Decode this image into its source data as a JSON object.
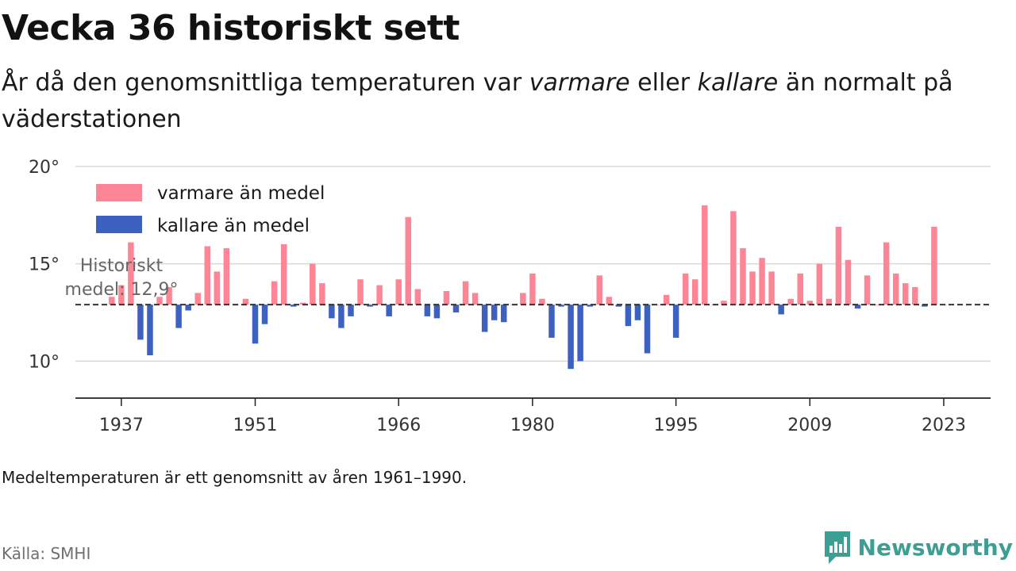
{
  "title": "Vecka 36 historiskt sett",
  "subtitle": {
    "part1": "År då den genomsnittliga temperaturen var ",
    "warm_word": "varmare",
    "part2": " eller ",
    "cold_word": "kallare",
    "part3": " än normalt på väderstationen"
  },
  "footnote": "Medeltemperaturen är ett genomsnitt av åren 1961–1990.",
  "source": "Källa: SMHI",
  "brand": {
    "name": "Newsworthy",
    "icon": "newsworthy-logo-icon",
    "color": "#3d9f93"
  },
  "colors": {
    "warm": "#fe8595",
    "cold": "#3d61c1",
    "mean_line": "#333333",
    "grid": "#d9d9d9"
  },
  "chart_data": {
    "type": "bar",
    "baseline": 12.9,
    "ylim": [
      8.1,
      20.4
    ],
    "yticks": [
      10,
      15,
      20
    ],
    "ytick_labels": [
      "10°",
      "15°",
      "20°"
    ],
    "xticks": [
      1937,
      1951,
      1966,
      1980,
      1995,
      2009,
      2023
    ],
    "xlim": [
      1932.2,
      2027.9
    ],
    "grid": true,
    "legend_position": "top-left",
    "legend": {
      "warm": "varmare än medel",
      "cold": "kallare än medel"
    },
    "annotation": {
      "line1": "Historiskt",
      "line2": "medel: 12,9°"
    },
    "years": [
      1936,
      1937,
      1938,
      1939,
      1940,
      1941,
      1942,
      1943,
      1944,
      1945,
      1946,
      1947,
      1948,
      1949,
      1950,
      1951,
      1952,
      1953,
      1954,
      1955,
      1956,
      1957,
      1958,
      1959,
      1960,
      1961,
      1962,
      1963,
      1964,
      1965,
      1966,
      1967,
      1968,
      1969,
      1970,
      1971,
      1972,
      1973,
      1974,
      1975,
      1976,
      1977,
      1978,
      1979,
      1980,
      1981,
      1982,
      1983,
      1984,
      1985,
      1986,
      1987,
      1988,
      1989,
      1990,
      1991,
      1992,
      1993,
      1994,
      1995,
      1996,
      1997,
      1998,
      1999,
      2000,
      2001,
      2002,
      2003,
      2004,
      2005,
      2006,
      2007,
      2008,
      2009,
      2010,
      2011,
      2012,
      2013,
      2014,
      2015,
      2016,
      2017,
      2018,
      2019,
      2020,
      2021,
      2022,
      2023
    ],
    "values": [
      13.3,
      13.9,
      16.1,
      11.1,
      10.3,
      13.3,
      13.8,
      11.7,
      12.6,
      13.5,
      15.9,
      14.6,
      15.8,
      12.9,
      13.2,
      10.9,
      11.9,
      14.1,
      16.0,
      12.8,
      13.0,
      15.0,
      14.0,
      12.2,
      11.7,
      12.3,
      14.2,
      12.8,
      13.9,
      12.3,
      14.2,
      17.4,
      13.7,
      12.3,
      12.2,
      13.6,
      12.5,
      14.1,
      13.5,
      11.5,
      12.1,
      12.0,
      12.9,
      13.5,
      14.5,
      13.2,
      11.2,
      12.8,
      9.6,
      10.0,
      12.8,
      14.4,
      13.3,
      12.8,
      11.8,
      12.1,
      10.4,
      12.9,
      13.4,
      11.2,
      14.5,
      14.2,
      18.0,
      12.9,
      13.1,
      17.7,
      15.8,
      14.6,
      15.3,
      14.6,
      12.4,
      13.2,
      14.5,
      13.1,
      15.0,
      13.2,
      16.9,
      15.2,
      12.7,
      14.4,
      12.9,
      16.1,
      14.5,
      14.0,
      13.8,
      12.8,
      16.9,
      12.9
    ]
  }
}
